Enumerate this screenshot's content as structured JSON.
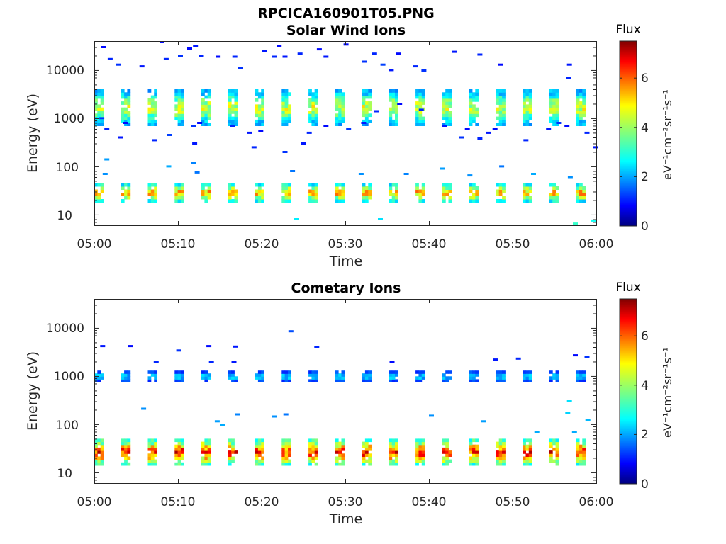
{
  "figure_title": "RPCICA160901T05.PNG",
  "chart_data": [
    {
      "type": "heatmap",
      "title": "Solar Wind Ions",
      "xlabel": "Time",
      "ylabel": "Energy (eV)",
      "x_ticks": [
        "05:00",
        "05:10",
        "05:20",
        "05:30",
        "05:40",
        "05:50",
        "06:00"
      ],
      "y_ticks": [
        "10",
        "100",
        "1000",
        "10000"
      ],
      "y_scale": "log",
      "y_range": [
        6,
        40000
      ],
      "x_range_minutes": [
        0,
        60
      ],
      "colorbar": {
        "title": "Flux",
        "label": "eV⁻¹cm⁻²sr⁻¹s⁻¹",
        "ticks": [
          0,
          2,
          4,
          6
        ],
        "range": [
          0,
          7.5
        ],
        "colormap": "jet"
      },
      "sweeps": {
        "start_minutes": [
          0,
          3.2,
          6.4,
          9.6,
          12.8,
          16,
          19.2,
          22.4,
          25.6,
          28.8,
          32,
          35.2,
          38.4,
          41.6,
          44.8,
          48,
          51.2,
          54.4,
          57.6
        ],
        "width_minutes": 1.1,
        "bands": [
          {
            "emin": 700,
            "emax": 4000,
            "peak": 4.4
          },
          {
            "emin": 18,
            "emax": 45,
            "peak": 5.3
          }
        ]
      },
      "scatter": [
        [
          0.8,
          30000,
          1.0
        ],
        [
          1.6,
          17000,
          1.2
        ],
        [
          2.6,
          13000,
          1.3
        ],
        [
          5.4,
          12000,
          1.1
        ],
        [
          7.8,
          38000,
          1.0
        ],
        [
          8.3,
          17000,
          1.2
        ],
        [
          10,
          20000,
          1.3
        ],
        [
          11.1,
          28000,
          1.0
        ],
        [
          11.8,
          32000,
          1.1
        ],
        [
          12.5,
          20000,
          1.2
        ],
        [
          14.5,
          19000,
          1.0
        ],
        [
          16.5,
          19000,
          1.2
        ],
        [
          17.2,
          11000,
          1.3
        ],
        [
          20,
          25000,
          1.1
        ],
        [
          21.2,
          19000,
          1.2
        ],
        [
          21.8,
          32000,
          1.0
        ],
        [
          22.5,
          19000,
          1.1
        ],
        [
          24.3,
          22000,
          1.2
        ],
        [
          26.6,
          27000,
          1.0
        ],
        [
          27.4,
          19000,
          1.1
        ],
        [
          29.8,
          34000,
          1.0
        ],
        [
          32,
          15000,
          1.3
        ],
        [
          33.2,
          22000,
          1.2
        ],
        [
          34.2,
          13000,
          1.4
        ],
        [
          35.2,
          10000,
          1.1
        ],
        [
          36.1,
          22000,
          1.0
        ],
        [
          38.1,
          12000,
          1.2
        ],
        [
          39.1,
          9800,
          1.3
        ],
        [
          42.8,
          24000,
          1.1
        ],
        [
          45.8,
          21000,
          1.2
        ],
        [
          48.3,
          13000,
          1.0
        ],
        [
          56.4,
          7000,
          1.2
        ],
        [
          56.5,
          13000,
          1.1
        ],
        [
          0.6,
          1000,
          1.3
        ],
        [
          1.2,
          600,
          1.2
        ],
        [
          2.8,
          400,
          1.1
        ],
        [
          3.4,
          800,
          1.0
        ],
        [
          6.9,
          350,
          1.2
        ],
        [
          8.7,
          450,
          1.4
        ],
        [
          11.6,
          700,
          1.3
        ],
        [
          11.7,
          300,
          1.1
        ],
        [
          12.3,
          800,
          1.0
        ],
        [
          16.2,
          700,
          1.2
        ],
        [
          18.3,
          500,
          1.1
        ],
        [
          18.8,
          250,
          1.2
        ],
        [
          19.6,
          550,
          1.0
        ],
        [
          22.5,
          200,
          1.3
        ],
        [
          24.7,
          300,
          1.1
        ],
        [
          25.4,
          500,
          1.2
        ],
        [
          27.4,
          700,
          1.0
        ],
        [
          30.1,
          600,
          1.3
        ],
        [
          31.9,
          800,
          1.1
        ],
        [
          33.4,
          1400,
          1.2
        ],
        [
          36.2,
          2000,
          1.0
        ],
        [
          38.8,
          1500,
          1.2
        ],
        [
          41.6,
          700,
          1.1
        ],
        [
          43.6,
          400,
          1.3
        ],
        [
          44.3,
          600,
          1.0
        ],
        [
          45.8,
          380,
          1.2
        ],
        [
          46.8,
          500,
          1.1
        ],
        [
          47.6,
          600,
          1.0
        ],
        [
          51.3,
          350,
          1.2
        ],
        [
          54,
          600,
          1.1
        ],
        [
          55.2,
          800,
          1.3
        ],
        [
          56.2,
          700,
          1.0
        ],
        [
          58.6,
          500,
          1.2
        ],
        [
          59.6,
          250,
          1.1
        ],
        [
          1.2,
          140,
          2.1
        ],
        [
          1,
          70,
          2.0
        ],
        [
          8.6,
          100,
          2.2
        ],
        [
          11.6,
          120,
          1.9
        ],
        [
          23.4,
          80,
          1.8
        ],
        [
          31.6,
          70,
          2.0
        ],
        [
          37,
          70,
          1.9
        ],
        [
          41.3,
          90,
          2.1
        ],
        [
          44.6,
          65,
          2.0
        ],
        [
          48.4,
          100,
          1.8
        ],
        [
          52.2,
          70,
          2.2
        ],
        [
          56.6,
          60,
          2.0
        ],
        [
          23.9,
          8,
          2.7
        ],
        [
          33.9,
          8,
          2.6
        ],
        [
          57.2,
          6.5,
          3.2
        ],
        [
          59.4,
          7.5,
          2.9
        ],
        [
          12,
          75,
          1.8
        ]
      ]
    },
    {
      "type": "heatmap",
      "title": "Cometary Ions",
      "xlabel": "Time",
      "ylabel": "Energy (eV)",
      "x_ticks": [
        "05:00",
        "05:10",
        "05:20",
        "05:30",
        "05:40",
        "05:50",
        "06:00"
      ],
      "y_ticks": [
        "10",
        "100",
        "1000",
        "10000"
      ],
      "y_scale": "log",
      "y_range": [
        6,
        40000
      ],
      "x_range_minutes": [
        0,
        60
      ],
      "colorbar": {
        "title": "Flux",
        "label": "eV⁻¹cm⁻²sr⁻¹s⁻¹",
        "ticks": [
          0,
          2,
          4,
          6
        ],
        "range": [
          0,
          7.5
        ],
        "colormap": "jet"
      },
      "sweeps": {
        "start_minutes": [
          0,
          3.2,
          6.4,
          9.6,
          12.8,
          16,
          19.2,
          22.4,
          25.6,
          28.8,
          32,
          35.2,
          38.4,
          41.6,
          44.8,
          48,
          51.2,
          54.4,
          57.6
        ],
        "width_minutes": 1.1,
        "bands": [
          {
            "emin": 750,
            "emax": 1300,
            "peak": 2.5
          },
          {
            "emin": 14,
            "emax": 50,
            "peak": 6.3
          }
        ]
      },
      "scatter": [
        [
          0.7,
          4200,
          1.1
        ],
        [
          4,
          4200,
          1.0
        ],
        [
          7.1,
          2000,
          1.2
        ],
        [
          9.8,
          3400,
          1.3
        ],
        [
          13.4,
          4200,
          1.0
        ],
        [
          16.6,
          4100,
          1.1
        ],
        [
          13.7,
          2000,
          1.2
        ],
        [
          16.4,
          2000,
          1.1
        ],
        [
          23.2,
          8500,
          1.5
        ],
        [
          26.3,
          4000,
          1.2
        ],
        [
          35.3,
          2000,
          1.0
        ],
        [
          47.7,
          2200,
          1.1
        ],
        [
          50.4,
          2300,
          1.2
        ],
        [
          57.2,
          2700,
          1.0
        ],
        [
          58.6,
          2500,
          1.3
        ],
        [
          5.6,
          210,
          2.0
        ],
        [
          14.4,
          115,
          2.1
        ],
        [
          15,
          95,
          2.2
        ],
        [
          16.8,
          160,
          1.9
        ],
        [
          21.2,
          145,
          2.0
        ],
        [
          22.6,
          160,
          1.8
        ],
        [
          40,
          150,
          2.0
        ],
        [
          46.2,
          115,
          2.1
        ],
        [
          52.6,
          70,
          2.2
        ],
        [
          56.3,
          170,
          2.5
        ],
        [
          56.5,
          300,
          2.6
        ],
        [
          57.1,
          70,
          2.2
        ],
        [
          58.7,
          120,
          2.3
        ]
      ]
    }
  ]
}
